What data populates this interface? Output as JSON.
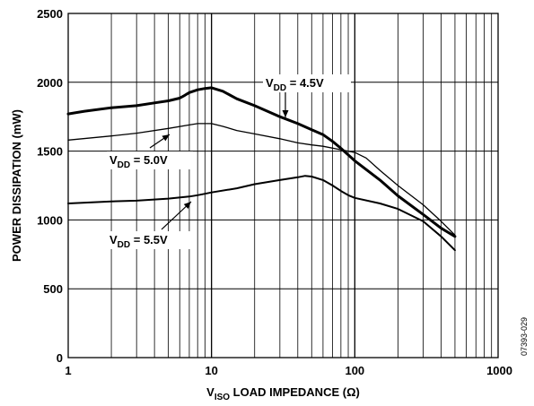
{
  "chart_data": {
    "type": "line",
    "xscale": "log",
    "xlim": [
      1,
      1000
    ],
    "ylim": [
      0,
      2500
    ],
    "xticks": [
      "1",
      "10",
      "100",
      "1000"
    ],
    "yticks": [
      "0",
      "500",
      "1000",
      "1500",
      "2000",
      "2500"
    ],
    "xlabel": {
      "base": "V",
      "sub": "ISO",
      "rest": " LOAD IMPEDANCE (Ω)"
    },
    "ylabel": "POWER DISSIPATION (mW)",
    "grid": true,
    "figure_id": "07393-029",
    "series": [
      {
        "name": {
          "base": "V",
          "sub": "DD",
          "rest": " = 4.5V"
        },
        "width": 3,
        "x": [
          1,
          1.3,
          2,
          3,
          4,
          5,
          6,
          6.5,
          7,
          8,
          9,
          10,
          12,
          15,
          20,
          30,
          40,
          50,
          60,
          70,
          80,
          100,
          150,
          200,
          300,
          400,
          500
        ],
        "y": [
          1770,
          1790,
          1815,
          1830,
          1850,
          1865,
          1885,
          1905,
          1925,
          1945,
          1955,
          1960,
          1935,
          1880,
          1830,
          1750,
          1700,
          1655,
          1620,
          1570,
          1520,
          1430,
          1290,
          1175,
          1040,
          940,
          880
        ]
      },
      {
        "name": {
          "base": "V",
          "sub": "DD",
          "rest": " = 5.0V"
        },
        "width": 1.3,
        "x": [
          1,
          2,
          3,
          5,
          7,
          8,
          10,
          12,
          15,
          20,
          30,
          40,
          50,
          60,
          80,
          100,
          120,
          150,
          200,
          300,
          400,
          500
        ],
        "y": [
          1580,
          1610,
          1630,
          1665,
          1690,
          1700,
          1700,
          1680,
          1650,
          1625,
          1590,
          1560,
          1545,
          1535,
          1510,
          1490,
          1450,
          1360,
          1250,
          1110,
          990,
          890
        ]
      },
      {
        "name": {
          "base": "V",
          "sub": "DD",
          "rest": " = 5.5V"
        },
        "width": 2,
        "x": [
          1,
          2,
          3,
          5,
          7,
          8,
          9,
          10,
          15,
          20,
          30,
          40,
          45,
          50,
          60,
          70,
          80,
          90,
          100,
          150,
          200,
          300,
          400,
          500
        ],
        "y": [
          1120,
          1135,
          1140,
          1155,
          1170,
          1180,
          1190,
          1200,
          1230,
          1260,
          1290,
          1310,
          1320,
          1315,
          1290,
          1250,
          1210,
          1180,
          1160,
          1120,
          1080,
          990,
          880,
          780
        ]
      }
    ]
  }
}
